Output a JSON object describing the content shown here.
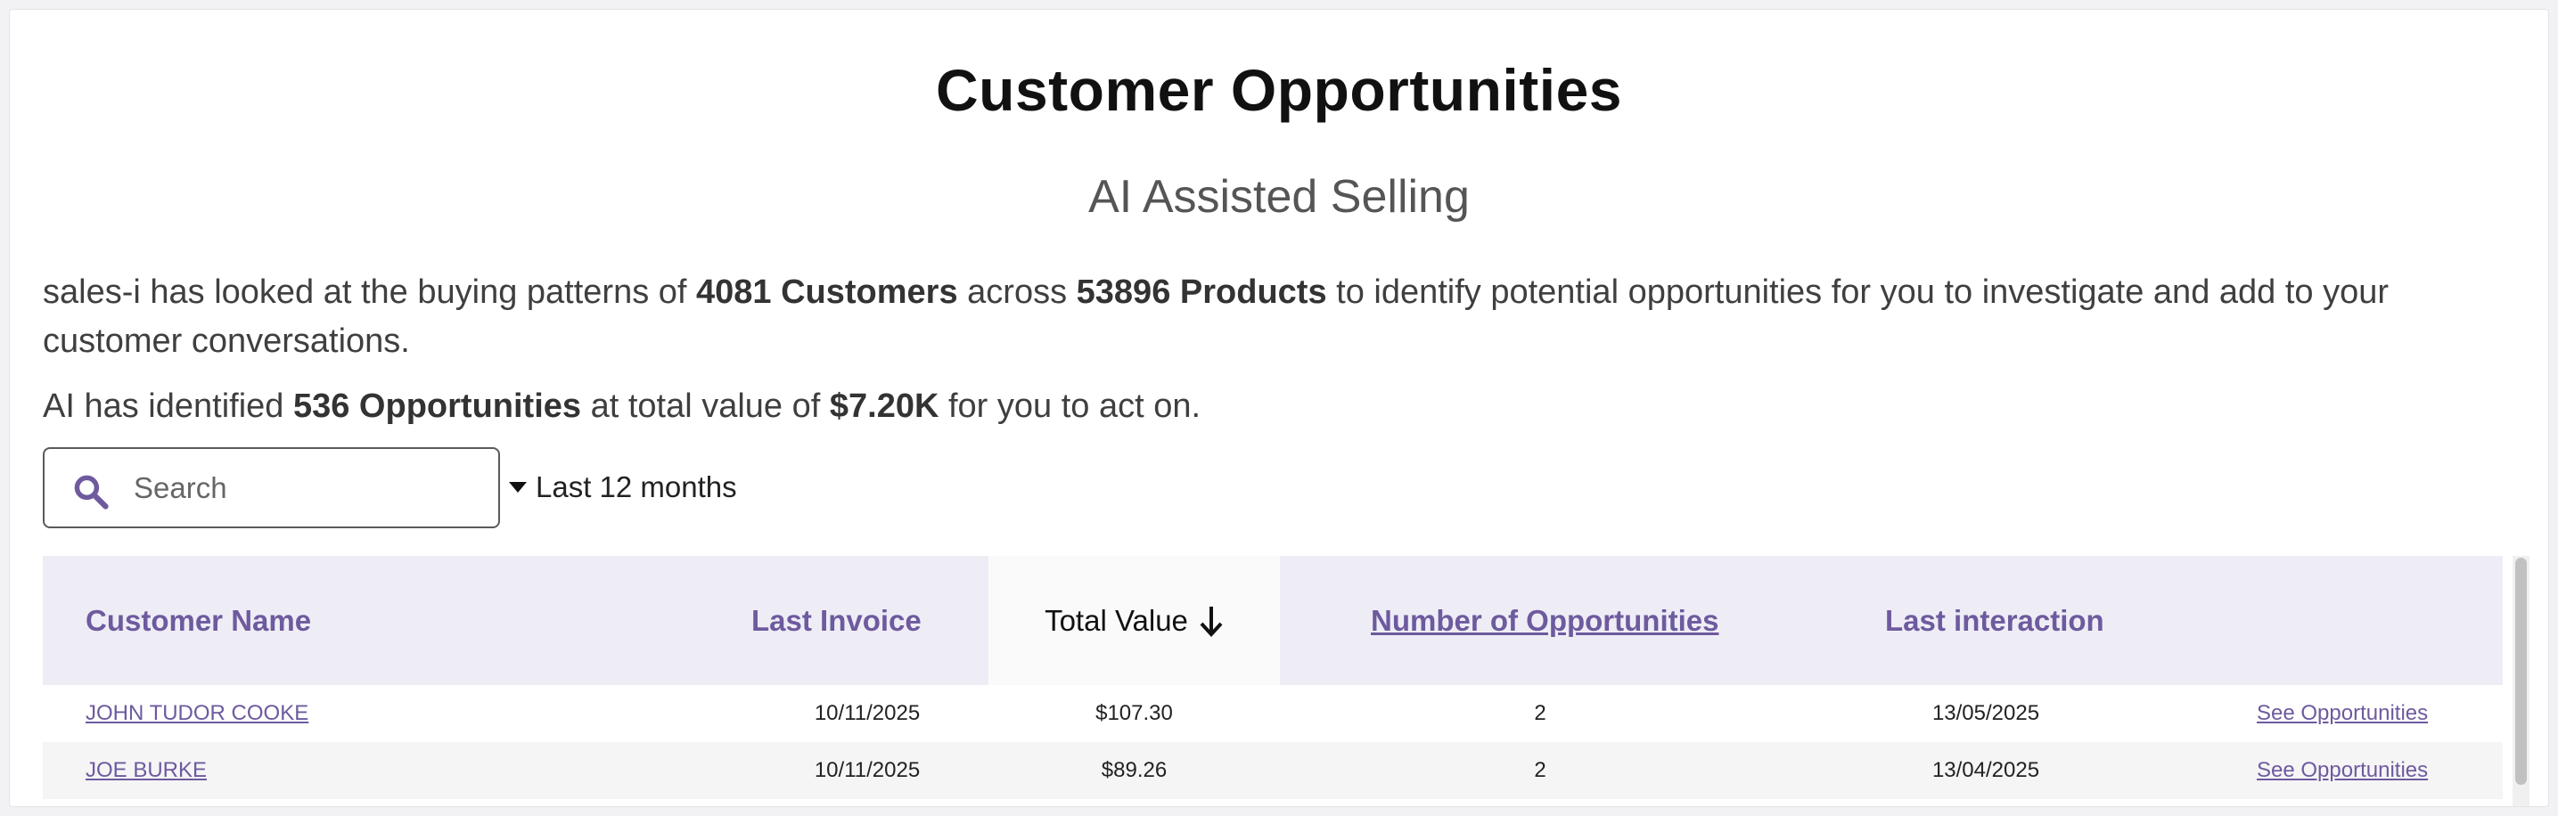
{
  "header": {
    "title": "Customer Opportunities",
    "subtitle": "AI Assisted Selling"
  },
  "summary": {
    "line1_pre": "sales-i has looked at the buying patterns of ",
    "customers": "4081 Customers",
    "line1_mid": " across ",
    "products": "53896 Products",
    "line1_post": " to identify potential opportunities for you to investigate and add to your customer conversations.",
    "line2_pre": "AI has identified ",
    "opportunities": "536 Opportunities",
    "line2_mid": " at total value of ",
    "total_value": "$7.20K",
    "line2_post": " for you to act on."
  },
  "search": {
    "placeholder": "Search",
    "value": ""
  },
  "filter": {
    "period_label": "Last 12 months"
  },
  "table": {
    "columns": {
      "customer_name": "Customer Name",
      "last_invoice": "Last Invoice",
      "total_value": "Total Value",
      "number_of_opportunities": "Number of Opportunities",
      "last_interaction": "Last interaction"
    },
    "sort": {
      "column": "Total Value",
      "direction": "descending"
    },
    "rows": [
      {
        "customer_name": "JOHN TUDOR COOKE",
        "last_invoice": "10/11/2025",
        "total_value": "$107.30",
        "number_of_opportunities": "2",
        "last_interaction": "13/05/2025",
        "action": "See Opportunities"
      },
      {
        "customer_name": "JOE BURKE",
        "last_invoice": "10/11/2025",
        "total_value": "$89.26",
        "number_of_opportunities": "2",
        "last_interaction": "13/04/2025",
        "action": "See Opportunities"
      }
    ]
  },
  "colors": {
    "accent": "#6e5a9e",
    "header_bg": "#eeedf6",
    "active_header_bg": "#fafafa"
  }
}
